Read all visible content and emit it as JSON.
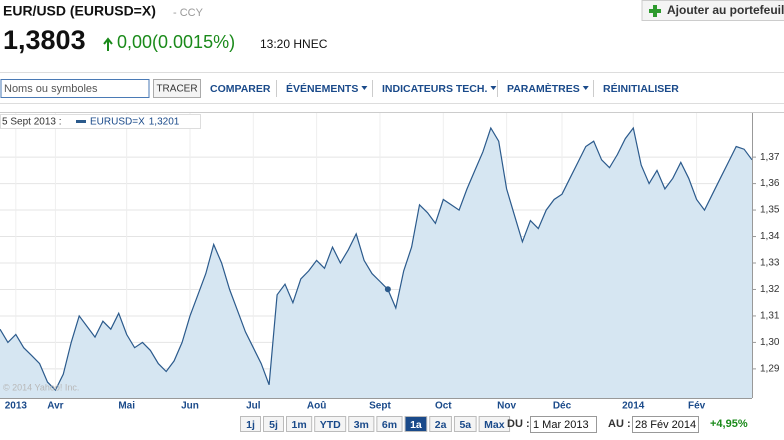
{
  "header": {
    "symbol": "EUR/USD (EURUSD=X)",
    "exchange": "- CCY",
    "price": "1,3803",
    "change": "0,00(0.0015%)",
    "time": "13:20 HNEC",
    "add_button": "Ajouter au portefeuill"
  },
  "toolbar": {
    "search_placeholder": "Noms ou symboles",
    "button": "TRACER",
    "items": [
      "COMPARER",
      "ÉVÉNEMENTS",
      "INDICATEURS TECH.",
      "PARAMÈTRES",
      "RÉINITIALISER"
    ]
  },
  "chart_data": {
    "type": "line",
    "legend_date": "5 Sept 2013 :",
    "watermark": "© 2014 Yahoo! Inc.",
    "grid": true,
    "hover_value": {
      "value": 1.3201,
      "label": "1,3201"
    },
    "categories": [
      null,
      null,
      "2013",
      null,
      null,
      null,
      null,
      "Avr",
      null,
      null,
      null,
      null,
      null,
      null,
      null,
      null,
      "Mai",
      null,
      null,
      null,
      null,
      null,
      null,
      null,
      "Jun",
      null,
      null,
      null,
      null,
      null,
      null,
      null,
      "Jul",
      null,
      null,
      null,
      null,
      null,
      null,
      null,
      "Aoû",
      null,
      null,
      null,
      null,
      null,
      null,
      null,
      "Sept",
      null,
      null,
      null,
      null,
      null,
      null,
      null,
      "Oct",
      null,
      null,
      null,
      null,
      null,
      null,
      null,
      "Nov",
      null,
      null,
      null,
      null,
      null,
      null,
      "Déc",
      null,
      null,
      null,
      null,
      null,
      null,
      null,
      null,
      "2014",
      null,
      null,
      null,
      null,
      null,
      null,
      null,
      "Fév",
      null,
      null,
      null,
      null,
      null,
      null,
      null
    ],
    "series": [
      {
        "name": "EURUSD=X",
        "color": "#2b5a8c",
        "values": [
          1.305,
          1.3,
          1.303,
          1.298,
          1.295,
          1.292,
          1.285,
          1.282,
          1.288,
          1.3,
          1.31,
          1.306,
          1.302,
          1.308,
          1.305,
          1.311,
          1.303,
          1.298,
          1.3,
          1.297,
          1.292,
          1.289,
          1.293,
          1.3,
          1.31,
          1.318,
          1.326,
          1.337,
          1.33,
          1.32,
          1.312,
          1.304,
          1.298,
          1.292,
          1.284,
          1.318,
          1.322,
          1.315,
          1.324,
          1.327,
          1.331,
          1.328,
          1.336,
          1.33,
          1.335,
          1.341,
          1.331,
          1.326,
          1.323,
          1.32,
          1.313,
          1.327,
          1.336,
          1.352,
          1.349,
          1.345,
          1.354,
          1.352,
          1.35,
          1.358,
          1.365,
          1.372,
          1.381,
          1.376,
          1.358,
          1.348,
          1.338,
          1.346,
          1.343,
          1.35,
          1.354,
          1.356,
          1.362,
          1.368,
          1.374,
          1.376,
          1.369,
          1.366,
          1.371,
          1.377,
          1.381,
          1.367,
          1.36,
          1.365,
          1.358,
          1.362,
          1.368,
          1.362,
          1.354,
          1.35,
          1.356,
          1.362,
          1.368,
          1.374,
          1.373,
          1.369
        ]
      }
    ],
    "ylim": [
      1.279,
      1.381
    ],
    "yticks": [
      {
        "value": 1.29,
        "label": "1,29"
      },
      {
        "value": 1.3,
        "label": "1,30"
      },
      {
        "value": 1.31,
        "label": "1,31"
      },
      {
        "value": 1.32,
        "label": "1,32"
      },
      {
        "value": 1.33,
        "label": "1,33"
      },
      {
        "value": 1.34,
        "label": "1,34"
      },
      {
        "value": 1.35,
        "label": "1,35"
      },
      {
        "value": 1.36,
        "label": "1,36"
      },
      {
        "value": 1.37,
        "label": "1,37"
      }
    ]
  },
  "range": {
    "buttons": [
      "1j",
      "5j",
      "1m",
      "YTD",
      "3m",
      "6m",
      "1a",
      "2a",
      "5a",
      "Max"
    ],
    "selected": "1a",
    "from_label": "DU :",
    "from": "1 Mar 2013",
    "to_label": "AU :",
    "to": "28 Fév 2014",
    "performance": "+4,95%"
  }
}
